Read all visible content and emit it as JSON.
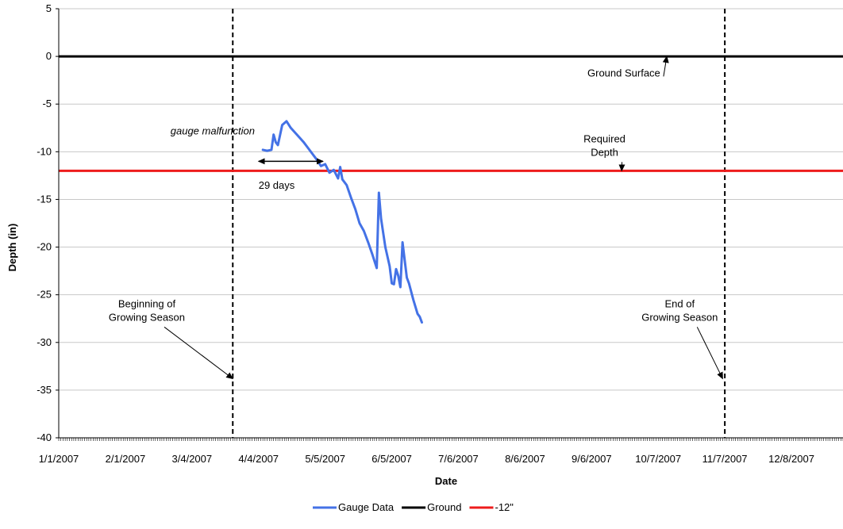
{
  "chart_data": {
    "type": "line",
    "title": "",
    "xlabel": "Date",
    "ylabel": "Depth (in)",
    "ylim": [
      -40,
      5
    ],
    "yticks": [
      "5",
      "0",
      "-5",
      "-10",
      "-15",
      "-20",
      "-25",
      "-30",
      "-35",
      "-40"
    ],
    "ytick_values": [
      5,
      0,
      -5,
      -10,
      -15,
      -20,
      -25,
      -30,
      -35,
      -40
    ],
    "xlim": [
      "2007-01-01",
      "2007-12-31"
    ],
    "xticks": [
      "1/1/2007",
      "2/1/2007",
      "3/4/2007",
      "4/4/2007",
      "5/5/2007",
      "6/5/2007",
      "7/6/2007",
      "8/6/2007",
      "9/6/2007",
      "10/7/2007",
      "11/7/2007",
      "12/8/2007"
    ],
    "xtick_dates": [
      "2007-01-01",
      "2007-02-01",
      "2007-03-04",
      "2007-04-04",
      "2007-05-05",
      "2007-06-05",
      "2007-07-06",
      "2007-08-06",
      "2007-09-06",
      "2007-10-07",
      "2007-11-07",
      "2007-12-08"
    ],
    "grid": "horizontal",
    "legend_position": "bottom",
    "series": [
      {
        "name": "Gauge Data",
        "color": "#4472e6",
        "points": [
          [
            "2007-04-06",
            -9.8
          ],
          [
            "2007-04-08",
            -9.9
          ],
          [
            "2007-04-10",
            -9.8
          ],
          [
            "2007-04-11",
            -8.2
          ],
          [
            "2007-04-12",
            -9.0
          ],
          [
            "2007-04-13",
            -9.3
          ],
          [
            "2007-04-15",
            -7.2
          ],
          [
            "2007-04-17",
            -6.8
          ],
          [
            "2007-04-19",
            -7.5
          ],
          [
            "2007-04-21",
            -8.0
          ],
          [
            "2007-04-23",
            -8.5
          ],
          [
            "2007-04-25",
            -9.0
          ],
          [
            "2007-04-27",
            -9.6
          ],
          [
            "2007-04-29",
            -10.2
          ],
          [
            "2007-05-01",
            -10.8
          ],
          [
            "2007-05-03",
            -11.5
          ],
          [
            "2007-05-05",
            -11.3
          ],
          [
            "2007-05-07",
            -12.2
          ],
          [
            "2007-05-09",
            -11.9
          ],
          [
            "2007-05-11",
            -12.8
          ],
          [
            "2007-05-12",
            -11.6
          ],
          [
            "2007-05-13",
            -12.9
          ],
          [
            "2007-05-15",
            -13.5
          ],
          [
            "2007-05-17",
            -14.8
          ],
          [
            "2007-05-19",
            -16.0
          ],
          [
            "2007-05-21",
            -17.5
          ],
          [
            "2007-05-23",
            -18.3
          ],
          [
            "2007-05-25",
            -19.5
          ],
          [
            "2007-05-27",
            -20.8
          ],
          [
            "2007-05-29",
            -22.2
          ],
          [
            "2007-05-30",
            -14.3
          ],
          [
            "2007-05-31",
            -17.0
          ],
          [
            "2007-06-02",
            -20.0
          ],
          [
            "2007-06-04",
            -22.0
          ],
          [
            "2007-06-05",
            -23.8
          ],
          [
            "2007-06-06",
            -23.9
          ],
          [
            "2007-06-07",
            -22.3
          ],
          [
            "2007-06-08",
            -23.0
          ],
          [
            "2007-06-09",
            -24.2
          ],
          [
            "2007-06-10",
            -19.5
          ],
          [
            "2007-06-12",
            -23.2
          ],
          [
            "2007-06-13",
            -23.8
          ],
          [
            "2007-06-15",
            -25.5
          ],
          [
            "2007-06-17",
            -27.0
          ],
          [
            "2007-06-18",
            -27.3
          ],
          [
            "2007-06-19",
            -27.9
          ]
        ]
      },
      {
        "name": "Ground",
        "color": "#000000",
        "y": 0
      },
      {
        "name": "-12\"",
        "color": "#ee1c1c",
        "y": -12
      }
    ],
    "vertical_markers": [
      {
        "date": "2007-03-23"
      },
      {
        "date": "2007-11-07"
      }
    ],
    "annotations": [
      {
        "text": "gauge malfunction",
        "italic": true,
        "x": "2007-02-22",
        "y": -8.2
      },
      {
        "text": "29 days",
        "x": "2007-04-04",
        "y": -13.9,
        "arrow_from": "2007-04-04",
        "arrow_to": "2007-05-04",
        "arrow_y": -11.0
      },
      {
        "text": "Ground Surface",
        "x": "2007-09-21",
        "y": -2.1,
        "pointer_to": [
          "2007-10-11",
          0
        ]
      },
      {
        "lines": [
          "Required",
          "Depth"
        ],
        "x": "2007-09-12",
        "y": -9.0,
        "pointer_to": [
          "2007-09-20",
          -12
        ]
      },
      {
        "lines": [
          "Beginning of",
          "Growing Season"
        ],
        "x": "2007-02-11",
        "y": -26.3,
        "pointer_to": [
          "2007-03-23",
          -33.8
        ]
      },
      {
        "lines": [
          "End of",
          "Growing Season"
        ],
        "x": "2007-10-17",
        "y": -26.3,
        "pointer_to": [
          "2007-11-06",
          -33.8
        ]
      }
    ]
  }
}
